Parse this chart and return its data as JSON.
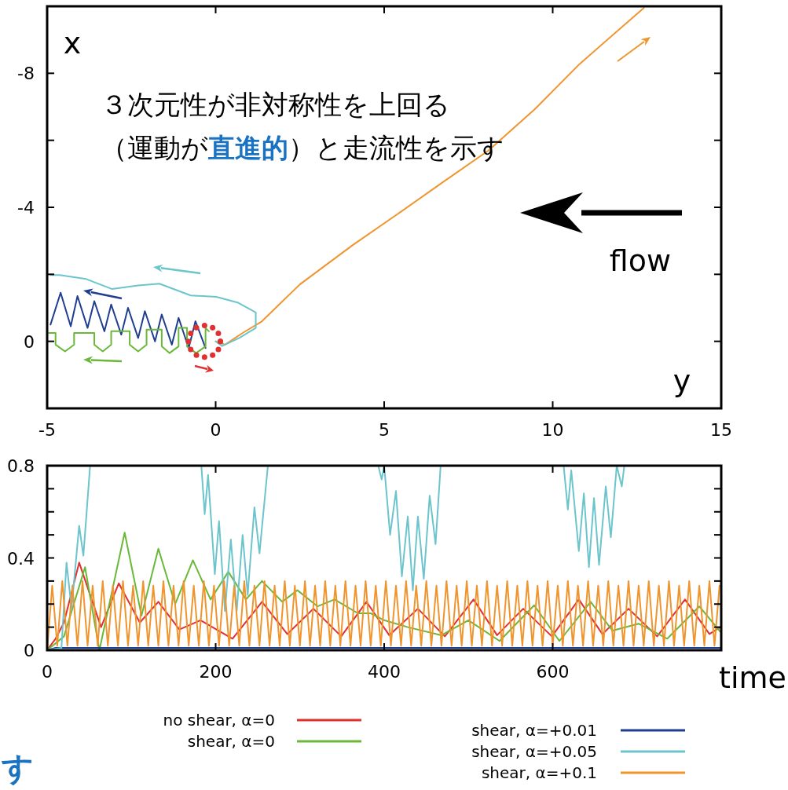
{
  "chart_data": [
    {
      "type": "line",
      "xlabel": "y",
      "ylabel": "x",
      "xlim": [
        -5,
        15
      ],
      "ylim": [
        2,
        -10
      ],
      "xticks": [
        -5,
        0,
        5,
        10,
        15
      ],
      "yticks": [
        -8,
        {
          "value": -6,
          "label": null
        },
        -4,
        {
          "value": -2,
          "label": null
        },
        0
      ],
      "annotations": [
        "３次元性が非対称性を上回る",
        "（運動が",
        "直進的",
        "）と走流性を示す",
        "flow"
      ],
      "series": [
        {
          "color": "#f0952e",
          "x": [
            0,
            0.28,
            0.8,
            1.35,
            2.5,
            4.05,
            5.4,
            6.77,
            8.1,
            9.47,
            10.8,
            12.7
          ],
          "values": [
            0,
            0.1,
            -0.25,
            -0.58,
            -1.7,
            -2.86,
            -3.8,
            -4.77,
            -5.7,
            -6.93,
            -8.28,
            -9.95
          ]
        },
        {
          "color": "#6cc5cc",
          "x": [
            0,
            0.19,
            0.7,
            1.19,
            1.19,
            0.65,
            0.02,
            -0.74,
            -1.67,
            -2.3,
            -3.07,
            -3.84,
            -4.63,
            -4.9
          ],
          "values": [
            0,
            0.14,
            -0.1,
            -0.4,
            -0.86,
            -1.16,
            -1.33,
            -1.37,
            -1.72,
            -1.67,
            -1.56,
            -1.86,
            -1.98,
            -1.98
          ]
        },
        {
          "color": "#1f3e8f",
          "x": [
            -0.3,
            -0.6,
            -0.8,
            -1.1,
            -1.3,
            -1.6,
            -1.8,
            -2.1,
            -2.3,
            -2.6,
            -2.8,
            -3.1,
            -3.3,
            -3.6,
            -3.8,
            -4.1,
            -4.3,
            -4.6,
            -4.9
          ],
          "values": [
            0.2,
            -0.6,
            0.2,
            -0.7,
            0.1,
            -0.8,
            0.0,
            -0.9,
            -0.1,
            -1.0,
            -0.2,
            -1.1,
            -0.3,
            -1.2,
            -0.4,
            -1.35,
            -0.45,
            -1.45,
            -0.5
          ]
        },
        {
          "color": "#6ab83a",
          "x": [
            -0.2,
            -0.3,
            -0.3,
            -0.58,
            -0.85,
            -0.85,
            -1.1,
            -1.1,
            -1.37,
            -1.6,
            -1.6,
            -2.05,
            -2.05,
            -2.3,
            -2.55,
            -2.55,
            -3.1,
            -3.1,
            -3.35,
            -3.6,
            -3.6,
            -4.2,
            -4.2,
            -4.47,
            -4.75,
            -4.75,
            -4.95
          ],
          "values": [
            -0.3,
            -0.4,
            0.15,
            0.35,
            0.15,
            -0.4,
            -0.4,
            0.15,
            0.35,
            0.15,
            -0.35,
            -0.35,
            0.1,
            0.3,
            0.1,
            -0.3,
            -0.3,
            0.1,
            0.3,
            0.1,
            -0.25,
            -0.25,
            0.1,
            0.3,
            0.1,
            -0.25,
            -0.25
          ]
        },
        {
          "type": "scatter",
          "color": "#e03030",
          "x": [
            0.14,
            0.08,
            -0.09,
            -0.33,
            -0.57,
            -0.74,
            -0.81,
            -0.74,
            -0.57,
            -0.33,
            -0.09,
            0.08,
            0.14
          ],
          "values": [
            0,
            -0.24,
            -0.41,
            -0.47,
            -0.41,
            -0.24,
            0,
            0.24,
            0.41,
            0.47,
            0.41,
            0.24,
            0
          ]
        }
      ]
    },
    {
      "type": "line",
      "xlabel": "time",
      "xlim": [
        0,
        800
      ],
      "ylim": [
        0,
        0.8
      ],
      "xticks": [
        0,
        200,
        400,
        600
      ],
      "yticks": [
        0,
        {
          "value": 0.1,
          "label": null
        },
        {
          "value": 0.2,
          "label": null
        },
        {
          "value": 0.3,
          "label": null
        },
        0.4,
        {
          "value": 0.5,
          "label": null
        },
        {
          "value": 0.6,
          "label": null
        },
        {
          "value": 0.7,
          "label": null
        },
        0.8
      ],
      "legend": "bottom",
      "annotations": [
        "す"
      ],
      "series": [
        {
          "name": "no shear, α=0",
          "color": "#e03030",
          "x": [
            0,
            10,
            20,
            38,
            64,
            85,
            110,
            132,
            157,
            182,
            220,
            255,
            285,
            316,
            349,
            379,
            406,
            440,
            472,
            506,
            534,
            565,
            599,
            631,
            659,
            690,
            724,
            757,
            786,
            799
          ],
          "values": [
            0,
            0.05,
            0.12,
            0.38,
            0.1,
            0.29,
            0.12,
            0.21,
            0.09,
            0.13,
            0.05,
            0.21,
            0.07,
            0.18,
            0.06,
            0.21,
            0.065,
            0.18,
            0.06,
            0.22,
            0.065,
            0.18,
            0.06,
            0.22,
            0.07,
            0.18,
            0.06,
            0.22,
            0.07,
            0.1
          ]
        },
        {
          "name": "shear, α=0",
          "color": "#6ab83a",
          "x": [
            0,
            10,
            20,
            45,
            62,
            92,
            112,
            132,
            152,
            173,
            194,
            215,
            236,
            255,
            279,
            297,
            321,
            341,
            369,
            384,
            400,
            428,
            468,
            500,
            537,
            578,
            608,
            645,
            671,
            702,
            736,
            774,
            799
          ],
          "values": [
            0,
            0.03,
            0.06,
            0.36,
            0,
            0.51,
            0.15,
            0.44,
            0.2,
            0.39,
            0.22,
            0.34,
            0.22,
            0.3,
            0.21,
            0.26,
            0.19,
            0.22,
            0.16,
            0.16,
            0.13,
            0.1,
            0.065,
            0.13,
            0.04,
            0.195,
            0.04,
            0.21,
            0.085,
            0.115,
            0.05,
            0.19,
            0.08
          ]
        },
        {
          "name": "shear, α=+0.01",
          "color": "#1f3e8f",
          "x": [
            0,
            10,
            800
          ],
          "values": [
            0,
            0.01,
            0.01
          ]
        },
        {
          "name": "shear, α=+0.05",
          "color": "#6cc5cc",
          "x": [
            0,
            17,
            23,
            29,
            38,
            43,
            51,
            null,
            183,
            187,
            191,
            199,
            204,
            211,
            218,
            225,
            232,
            238,
            246,
            252,
            262,
            null,
            393,
            397,
            400,
            407,
            414,
            421,
            428,
            434,
            440,
            447,
            454,
            461,
            467,
            null,
            613,
            618,
            622,
            631,
            637,
            643,
            649,
            655,
            663,
            669,
            676,
            682,
            685
          ],
          "values": [
            0,
            0.01,
            0.38,
            0.18,
            0.54,
            0.41,
            0.8,
            null,
            0.8,
            0.59,
            0.76,
            0.33,
            0.56,
            0.17,
            0.48,
            0.17,
            0.5,
            0.24,
            0.62,
            0.42,
            0.8,
            null,
            0.8,
            0.74,
            0.8,
            0.5,
            0.69,
            0.32,
            0.58,
            0.26,
            0.58,
            0.31,
            0.67,
            0.46,
            0.8,
            null,
            0.8,
            0.61,
            0.78,
            0.43,
            0.68,
            0.36,
            0.66,
            0.37,
            0.71,
            0.49,
            0.8,
            0.71,
            0.8
          ]
        },
        {
          "name": "shear, α=+0.1",
          "color": "#f0952e",
          "x": [
            0,
            6,
            12,
            18,
            24,
            30,
            36,
            42,
            48,
            54,
            60,
            66,
            72,
            78,
            84,
            90,
            96,
            102,
            108,
            114,
            120,
            126,
            132,
            138,
            144,
            150,
            156,
            162,
            168,
            174,
            180,
            186,
            192,
            198,
            204,
            210,
            216,
            222,
            228,
            234,
            240,
            246,
            252,
            258,
            264,
            270,
            276,
            282,
            288,
            294,
            300,
            306,
            312,
            318,
            324,
            330,
            336,
            342,
            348,
            354,
            360,
            366,
            372,
            378,
            384,
            390,
            396,
            402,
            408,
            414,
            420,
            426,
            432,
            438,
            444,
            450,
            456,
            462,
            468,
            474,
            480,
            486,
            492,
            498,
            504,
            510,
            516,
            522,
            528,
            534,
            540,
            546,
            552,
            558,
            564,
            570,
            576,
            582,
            588,
            594,
            600,
            606,
            612,
            618,
            624,
            630,
            636,
            642,
            648,
            654,
            660,
            666,
            672,
            678,
            684,
            690,
            696,
            702,
            708,
            714,
            720,
            726,
            732,
            738,
            744,
            750,
            756,
            762,
            768,
            774,
            780,
            786,
            792,
            798
          ],
          "values": [
            0,
            0.28,
            0.02,
            0.3,
            0.02,
            0.28,
            0.02,
            0.3,
            0.02,
            0.28,
            0.02,
            0.3,
            0.02,
            0.28,
            0.02,
            0.3,
            0.02,
            0.28,
            0.02,
            0.3,
            0.02,
            0.28,
            0.02,
            0.3,
            0.02,
            0.28,
            0.02,
            0.3,
            0.02,
            0.28,
            0.02,
            0.3,
            0.02,
            0.28,
            0.02,
            0.3,
            0.02,
            0.28,
            0.02,
            0.3,
            0.02,
            0.28,
            0.02,
            0.3,
            0.02,
            0.28,
            0.02,
            0.3,
            0.02,
            0.28,
            0.02,
            0.3,
            0.02,
            0.28,
            0.02,
            0.3,
            0.02,
            0.28,
            0.02,
            0.3,
            0.02,
            0.28,
            0.02,
            0.3,
            0.02,
            0.28,
            0.02,
            0.3,
            0.02,
            0.28,
            0.02,
            0.3,
            0.02,
            0.28,
            0.02,
            0.3,
            0.02,
            0.28,
            0.02,
            0.3,
            0.02,
            0.28,
            0.02,
            0.3,
            0.02,
            0.28,
            0.02,
            0.3,
            0.02,
            0.28,
            0.02,
            0.3,
            0.02,
            0.28,
            0.02,
            0.3,
            0.02,
            0.28,
            0.02,
            0.3,
            0.02,
            0.28,
            0.02,
            0.3,
            0.02,
            0.28,
            0.02,
            0.3,
            0.02,
            0.28,
            0.02,
            0.3,
            0.02,
            0.28,
            0.02,
            0.3,
            0.02,
            0.28,
            0.02,
            0.3,
            0.02,
            0.28,
            0.02,
            0.3,
            0.02,
            0.28,
            0.02,
            0.3,
            0.02,
            0.28,
            0.02,
            0.3,
            0.02,
            0.28
          ]
        }
      ]
    }
  ]
}
